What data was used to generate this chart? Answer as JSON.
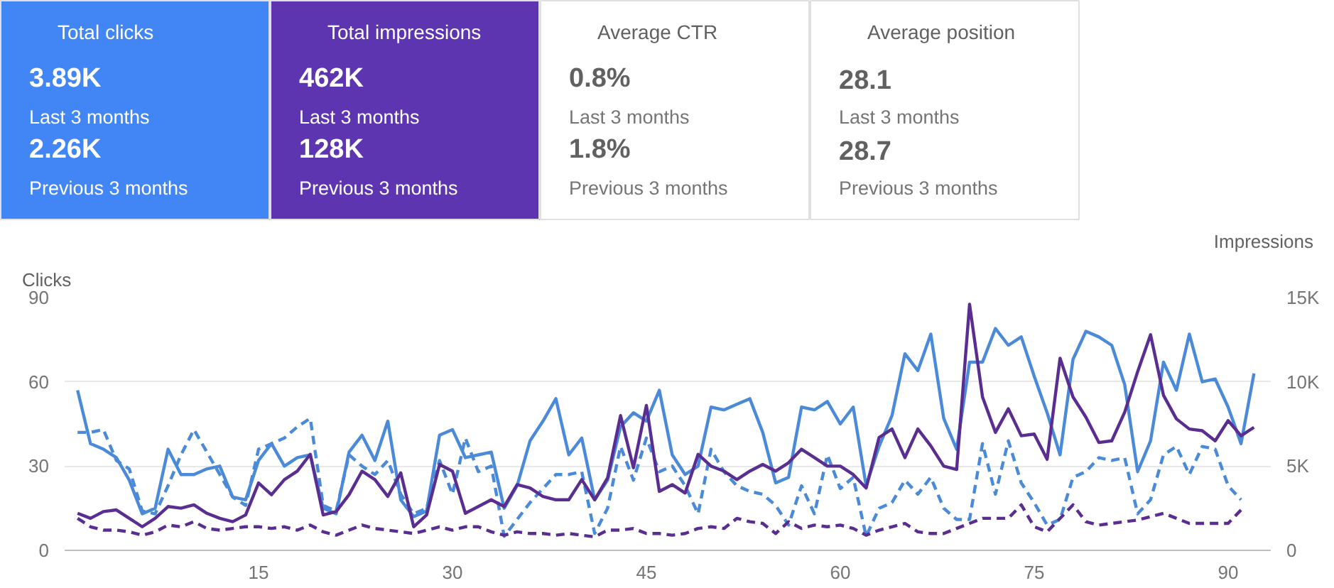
{
  "chart_data": [
    {
      "type": "other",
      "title": "Total clicks",
      "color": "#4285f4",
      "annotations": [
        "3.89K",
        "Last 3 months",
        "2.26K",
        "Previous 3 months"
      ]
    },
    {
      "type": "other",
      "title": "Total impressions",
      "color": "#5e35b1",
      "annotations": [
        "462K",
        "Last 3 months",
        "128K",
        "Previous 3 months"
      ]
    },
    {
      "type": "other",
      "title": "Average CTR",
      "annotations": [
        "0.8%",
        "Last 3 months",
        "1.8%",
        "Previous 3 months"
      ]
    },
    {
      "type": "other",
      "title": "Average position",
      "annotations": [
        "28.1",
        "Last 3 months",
        "28.7",
        "Previous 3 months"
      ]
    },
    {
      "type": "line",
      "ylabel": "Clicks",
      "y2label": "Impressions",
      "xlim": [
        0,
        93.3
      ],
      "xticks": [
        15,
        30,
        45,
        60,
        75,
        90
      ],
      "ylim": [
        0,
        90
      ],
      "yticks": [
        0,
        30,
        60,
        90
      ],
      "y2lim": [
        0,
        15000
      ],
      "y2ticks": [
        0,
        {
          "value": 5000,
          "label": "5K"
        },
        {
          "value": 10000,
          "label": "10K"
        },
        {
          "value": 15000,
          "label": "15K"
        }
      ],
      "grid": "y",
      "series": [
        {
          "color": "#4a8ad9",
          "line_style": "dashed",
          "x": [
            1,
            2,
            3,
            4,
            5,
            6,
            7,
            8,
            9,
            10,
            11,
            12,
            13,
            14,
            15,
            16,
            17,
            18,
            19,
            20,
            21,
            22,
            23,
            24,
            25,
            26,
            27,
            28,
            29,
            30,
            31,
            32,
            33,
            34,
            35,
            36,
            37,
            38,
            39,
            40,
            41,
            42,
            43,
            44,
            45,
            46,
            47,
            48,
            49,
            50,
            51,
            52,
            53,
            54,
            55,
            56,
            57,
            58,
            59,
            60,
            61,
            62,
            63,
            64,
            65,
            66,
            67,
            68,
            69,
            70,
            71,
            72,
            73,
            74,
            75,
            76,
            77,
            78,
            79,
            80,
            81,
            82,
            83,
            84,
            85,
            86,
            87,
            88,
            89,
            90,
            91
          ],
          "values": [
            42,
            42,
            43,
            32,
            29,
            14,
            13,
            23,
            34,
            43,
            35,
            27,
            19,
            16,
            36,
            38,
            40,
            44,
            47,
            16,
            14,
            34,
            30,
            27,
            32,
            20,
            13,
            15,
            32,
            20,
            40,
            28,
            30,
            5,
            11,
            17,
            22,
            27,
            27,
            28,
            6,
            15,
            37,
            25,
            40,
            28,
            30,
            23,
            13,
            36,
            28,
            23,
            21,
            20,
            16,
            9,
            23,
            13,
            34,
            22,
            26,
            5,
            15,
            17,
            25,
            20,
            26,
            15,
            11,
            11,
            38,
            20,
            39,
            24,
            17,
            9,
            11,
            26,
            28,
            33,
            32,
            33,
            13,
            18,
            34,
            37,
            27,
            37,
            36,
            23,
            18
          ]
        },
        {
          "color": "#5a2d91",
          "line_style": "dashed",
          "axis": "y2",
          "x": [
            1,
            2,
            3,
            4,
            5,
            6,
            7,
            8,
            9,
            10,
            11,
            12,
            13,
            14,
            15,
            16,
            17,
            18,
            19,
            20,
            21,
            22,
            23,
            24,
            25,
            26,
            27,
            28,
            29,
            30,
            31,
            32,
            33,
            34,
            35,
            36,
            37,
            38,
            39,
            40,
            41,
            42,
            43,
            44,
            45,
            46,
            47,
            48,
            49,
            50,
            51,
            52,
            53,
            54,
            55,
            56,
            57,
            58,
            59,
            60,
            61,
            62,
            63,
            64,
            65,
            66,
            67,
            68,
            69,
            70,
            71,
            72,
            73,
            74,
            75,
            76,
            77,
            78,
            79,
            80,
            81,
            82,
            83,
            84,
            85,
            86,
            87,
            88,
            89,
            90,
            91
          ],
          "values": [
            1900,
            1400,
            1200,
            1200,
            1100,
            900,
            1100,
            1500,
            1400,
            1700,
            1300,
            1200,
            1300,
            1400,
            1400,
            1300,
            1400,
            1200,
            1500,
            1100,
            900,
            1200,
            1500,
            1300,
            1200,
            1100,
            1000,
            1200,
            1400,
            1200,
            1400,
            1400,
            1100,
            900,
            1100,
            1000,
            1000,
            900,
            1000,
            900,
            800,
            1200,
            1200,
            1300,
            1000,
            1000,
            900,
            1000,
            1300,
            1400,
            1300,
            1900,
            1700,
            1600,
            1000,
            1700,
            1300,
            1500,
            1400,
            1500,
            1300,
            900,
            1200,
            1400,
            1600,
            1100,
            1000,
            1000,
            1300,
            1600,
            1900,
            1900,
            1900,
            2700,
            1400,
            1100,
            1900,
            2700,
            1700,
            1500,
            1600,
            1700,
            1800,
            2000,
            2200,
            1900,
            1600,
            1600,
            1600,
            1600,
            2400
          ]
        },
        {
          "color": "#4a8ad9",
          "line_style": "solid",
          "x": [
            1,
            2,
            3,
            4,
            5,
            6,
            7,
            8,
            9,
            10,
            11,
            12,
            13,
            14,
            15,
            16,
            17,
            18,
            19,
            20,
            21,
            22,
            23,
            24,
            25,
            26,
            27,
            28,
            29,
            30,
            31,
            32,
            33,
            34,
            35,
            36,
            37,
            38,
            39,
            40,
            41,
            42,
            43,
            44,
            45,
            46,
            47,
            48,
            49,
            50,
            51,
            52,
            53,
            54,
            55,
            56,
            57,
            58,
            59,
            60,
            61,
            62,
            63,
            64,
            65,
            66,
            67,
            68,
            69,
            70,
            71,
            72,
            73,
            74,
            75,
            76,
            77,
            78,
            79,
            80,
            81,
            82,
            83,
            84,
            85,
            86,
            87,
            88,
            89,
            90,
            91,
            92
          ],
          "values": [
            57,
            38,
            36,
            33,
            25,
            13,
            15,
            36,
            27,
            27,
            29,
            30,
            19,
            18,
            32,
            38,
            30,
            33,
            34,
            15,
            13,
            35,
            41,
            32,
            46,
            18,
            12,
            14,
            41,
            43,
            33,
            34,
            35,
            15,
            23,
            39,
            46,
            54,
            34,
            40,
            18,
            25,
            44,
            49,
            46,
            57,
            34,
            27,
            30,
            51,
            50,
            52,
            54,
            42,
            24,
            26,
            51,
            50,
            53,
            45,
            51,
            23,
            37,
            48,
            70,
            64,
            77,
            47,
            36,
            67,
            67,
            79,
            73,
            76,
            62,
            49,
            34,
            68,
            78,
            76,
            73,
            59,
            28,
            39,
            67,
            57,
            77,
            60,
            61,
            51,
            38,
            63
          ]
        },
        {
          "color": "#5a2d91",
          "line_style": "solid",
          "axis": "y2",
          "x": [
            1,
            2,
            3,
            4,
            5,
            6,
            7,
            8,
            9,
            10,
            11,
            12,
            13,
            14,
            15,
            16,
            17,
            18,
            19,
            20,
            21,
            22,
            23,
            24,
            25,
            26,
            27,
            28,
            29,
            30,
            31,
            32,
            33,
            34,
            35,
            36,
            37,
            38,
            39,
            40,
            41,
            42,
            43,
            44,
            45,
            46,
            47,
            48,
            49,
            50,
            51,
            52,
            53,
            54,
            55,
            56,
            57,
            58,
            59,
            60,
            61,
            62,
            63,
            64,
            65,
            66,
            67,
            68,
            69,
            70,
            71,
            72,
            73,
            74,
            75,
            76,
            77,
            78,
            79,
            80,
            81,
            82,
            83,
            84,
            85,
            86,
            87,
            88,
            89,
            90,
            91,
            92
          ],
          "values": [
            2200,
            1900,
            2300,
            2400,
            1900,
            1400,
            1900,
            2600,
            2500,
            2700,
            2200,
            1900,
            1700,
            2100,
            4000,
            3300,
            4200,
            4700,
            5700,
            2100,
            2300,
            3300,
            4700,
            4200,
            3200,
            4600,
            1400,
            2100,
            5100,
            4700,
            2200,
            2600,
            3000,
            2600,
            3900,
            3700,
            3200,
            3000,
            3000,
            4200,
            3000,
            4300,
            8000,
            4900,
            8600,
            3500,
            3900,
            3400,
            5700,
            5000,
            4700,
            4200,
            4700,
            5100,
            4700,
            5200,
            6000,
            5500,
            5000,
            5000,
            4500,
            3700,
            6700,
            7200,
            5500,
            7200,
            6200,
            5000,
            4800,
            14600,
            9100,
            7000,
            8400,
            6800,
            6900,
            5400,
            11400,
            9100,
            7900,
            6400,
            6500,
            8200,
            10600,
            12800,
            9200,
            7800,
            7200,
            7100,
            6500,
            7700,
            6800,
            7300
          ]
        }
      ]
    }
  ]
}
